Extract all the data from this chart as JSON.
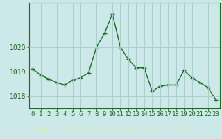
{
  "x": [
    0,
    1,
    2,
    3,
    4,
    5,
    6,
    7,
    8,
    9,
    10,
    11,
    12,
    13,
    14,
    15,
    16,
    17,
    18,
    19,
    20,
    21,
    22,
    23
  ],
  "y": [
    1019.1,
    1018.85,
    1018.7,
    1018.55,
    1018.45,
    1018.65,
    1018.75,
    1018.95,
    1020.0,
    1020.55,
    1021.35,
    1020.0,
    1019.5,
    1019.15,
    1019.15,
    1018.2,
    1018.4,
    1018.45,
    1018.45,
    1019.05,
    1018.75,
    1018.55,
    1018.35,
    1017.85
  ],
  "line_color": "#1a6b1a",
  "marker": "+",
  "bg_color": "#cce8e8",
  "grid_color": "#aacece",
  "xlabel": "Graphe pression niveau de la mer (hPa)",
  "tick_label_color": "#1a6b1a",
  "axis_color": "#1a6b1a",
  "ylim": [
    1017.5,
    1021.8
  ],
  "yticks": [
    1018,
    1019,
    1020
  ],
  "xticks": [
    0,
    1,
    2,
    3,
    4,
    5,
    6,
    7,
    8,
    9,
    10,
    11,
    12,
    13,
    14,
    15,
    16,
    17,
    18,
    19,
    20,
    21,
    22,
    23
  ],
  "tick_fontsize": 6.5,
  "bottom_bg": "#2d6b2d",
  "bottom_label_color": "#cceecc",
  "xlabel_fontsize": 7.5
}
